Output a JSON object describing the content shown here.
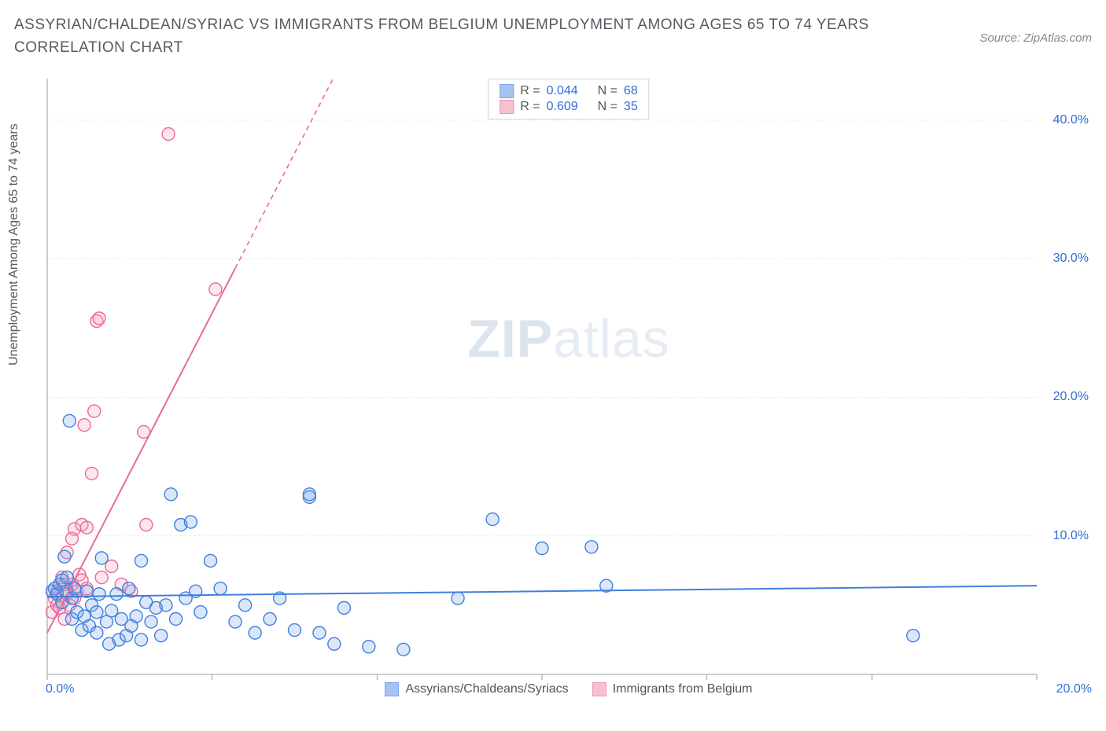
{
  "title": "ASSYRIAN/CHALDEAN/SYRIAC VS IMMIGRANTS FROM BELGIUM UNEMPLOYMENT AMONG AGES 65 TO 74 YEARS CORRELATION CHART",
  "source_label": "Source: ZipAtlas.com",
  "ylabel": "Unemployment Among Ages 65 to 74 years",
  "watermark_a": "ZIP",
  "watermark_b": "atlas",
  "chart": {
    "type": "scatter",
    "background_color": "#ffffff",
    "grid_color": "#e9e9e9",
    "axis_color": "#bcbcbc",
    "tick_color": "#bcbcbc",
    "xlim": [
      0,
      20
    ],
    "ylim": [
      0,
      43
    ],
    "x_ticks": [
      0,
      3.33,
      6.67,
      10,
      13.33,
      16.67,
      20
    ],
    "x_tick_labels": {
      "0": "0.0%",
      "20": "20.0%"
    },
    "y_grid": [
      10,
      20,
      30,
      40
    ],
    "y_tick_labels": {
      "10": "10.0%",
      "20": "20.0%",
      "30": "30.0%",
      "40": "40.0%"
    },
    "marker_radius": 8,
    "marker_stroke_width": 1.4,
    "marker_fill_opacity": 0.28,
    "line_width": 2
  },
  "series_a": {
    "label": "Assyrians/Chaldeans/Syriacs",
    "color_stroke": "#3f7fe0",
    "color_fill": "#7fa9ea",
    "R": "0.044",
    "N": "68",
    "trend": {
      "x1": 0,
      "y1": 5.6,
      "x2": 20,
      "y2": 6.4,
      "solid_until_x": 20
    },
    "points": [
      [
        0.1,
        6.0
      ],
      [
        0.15,
        6.2
      ],
      [
        0.2,
        5.8
      ],
      [
        0.25,
        6.5
      ],
      [
        0.3,
        5.2
      ],
      [
        0.3,
        6.8
      ],
      [
        0.35,
        8.5
      ],
      [
        0.4,
        6.0
      ],
      [
        0.4,
        7.0
      ],
      [
        0.45,
        18.3
      ],
      [
        0.5,
        5.5
      ],
      [
        0.5,
        4.0
      ],
      [
        0.55,
        6.2
      ],
      [
        0.6,
        4.5
      ],
      [
        0.7,
        3.2
      ],
      [
        0.75,
        4.2
      ],
      [
        0.8,
        6.0
      ],
      [
        0.85,
        3.5
      ],
      [
        0.9,
        5.0
      ],
      [
        1.0,
        4.5
      ],
      [
        1.0,
        3.0
      ],
      [
        1.05,
        5.8
      ],
      [
        1.1,
        8.4
      ],
      [
        1.2,
        3.8
      ],
      [
        1.25,
        2.2
      ],
      [
        1.3,
        4.6
      ],
      [
        1.4,
        5.8
      ],
      [
        1.45,
        2.5
      ],
      [
        1.5,
        4.0
      ],
      [
        1.6,
        2.8
      ],
      [
        1.65,
        6.2
      ],
      [
        1.7,
        3.5
      ],
      [
        1.8,
        4.2
      ],
      [
        1.9,
        2.5
      ],
      [
        1.9,
        8.2
      ],
      [
        2.0,
        5.2
      ],
      [
        2.1,
        3.8
      ],
      [
        2.2,
        4.8
      ],
      [
        2.3,
        2.8
      ],
      [
        2.4,
        5.0
      ],
      [
        2.5,
        13.0
      ],
      [
        2.6,
        4.0
      ],
      [
        2.7,
        10.8
      ],
      [
        2.8,
        5.5
      ],
      [
        2.9,
        11.0
      ],
      [
        3.0,
        6.0
      ],
      [
        3.1,
        4.5
      ],
      [
        3.3,
        8.2
      ],
      [
        3.5,
        6.2
      ],
      [
        3.8,
        3.8
      ],
      [
        4.0,
        5.0
      ],
      [
        4.2,
        3.0
      ],
      [
        4.5,
        4.0
      ],
      [
        4.7,
        5.5
      ],
      [
        5.0,
        3.2
      ],
      [
        5.3,
        12.8
      ],
      [
        5.3,
        13.0
      ],
      [
        5.5,
        3.0
      ],
      [
        5.8,
        2.2
      ],
      [
        6.0,
        4.8
      ],
      [
        6.5,
        2.0
      ],
      [
        7.2,
        1.8
      ],
      [
        8.3,
        5.5
      ],
      [
        9.0,
        11.2
      ],
      [
        10.0,
        9.1
      ],
      [
        11.0,
        9.2
      ],
      [
        11.3,
        6.4
      ],
      [
        17.5,
        2.8
      ]
    ]
  },
  "series_b": {
    "label": "Immigrants from Belgium",
    "color_stroke": "#e86a9a",
    "color_fill": "#f4a4c0",
    "R": "0.609",
    "N": "35",
    "trend": {
      "x1": 0,
      "y1": 3.0,
      "x2": 6.5,
      "y2": 48,
      "solid_until_x": 3.8
    },
    "points": [
      [
        0.1,
        4.5
      ],
      [
        0.15,
        5.5
      ],
      [
        0.2,
        5.0
      ],
      [
        0.2,
        6.0
      ],
      [
        0.25,
        4.8
      ],
      [
        0.3,
        5.2
      ],
      [
        0.3,
        7.0
      ],
      [
        0.35,
        4.0
      ],
      [
        0.35,
        6.5
      ],
      [
        0.4,
        5.8
      ],
      [
        0.4,
        8.8
      ],
      [
        0.45,
        5.0
      ],
      [
        0.5,
        6.5
      ],
      [
        0.5,
        9.8
      ],
      [
        0.55,
        5.5
      ],
      [
        0.55,
        10.5
      ],
      [
        0.6,
        6.0
      ],
      [
        0.65,
        7.2
      ],
      [
        0.7,
        6.8
      ],
      [
        0.7,
        10.8
      ],
      [
        0.75,
        18.0
      ],
      [
        0.8,
        6.2
      ],
      [
        0.8,
        10.6
      ],
      [
        0.9,
        14.5
      ],
      [
        0.95,
        19.0
      ],
      [
        1.0,
        25.5
      ],
      [
        1.05,
        25.7
      ],
      [
        1.1,
        7.0
      ],
      [
        1.3,
        7.8
      ],
      [
        1.5,
        6.5
      ],
      [
        1.7,
        6.0
      ],
      [
        1.95,
        17.5
      ],
      [
        2.0,
        10.8
      ],
      [
        2.45,
        39.0
      ],
      [
        3.4,
        27.8
      ]
    ]
  },
  "stats_labels": {
    "R": "R =",
    "N": "N ="
  }
}
